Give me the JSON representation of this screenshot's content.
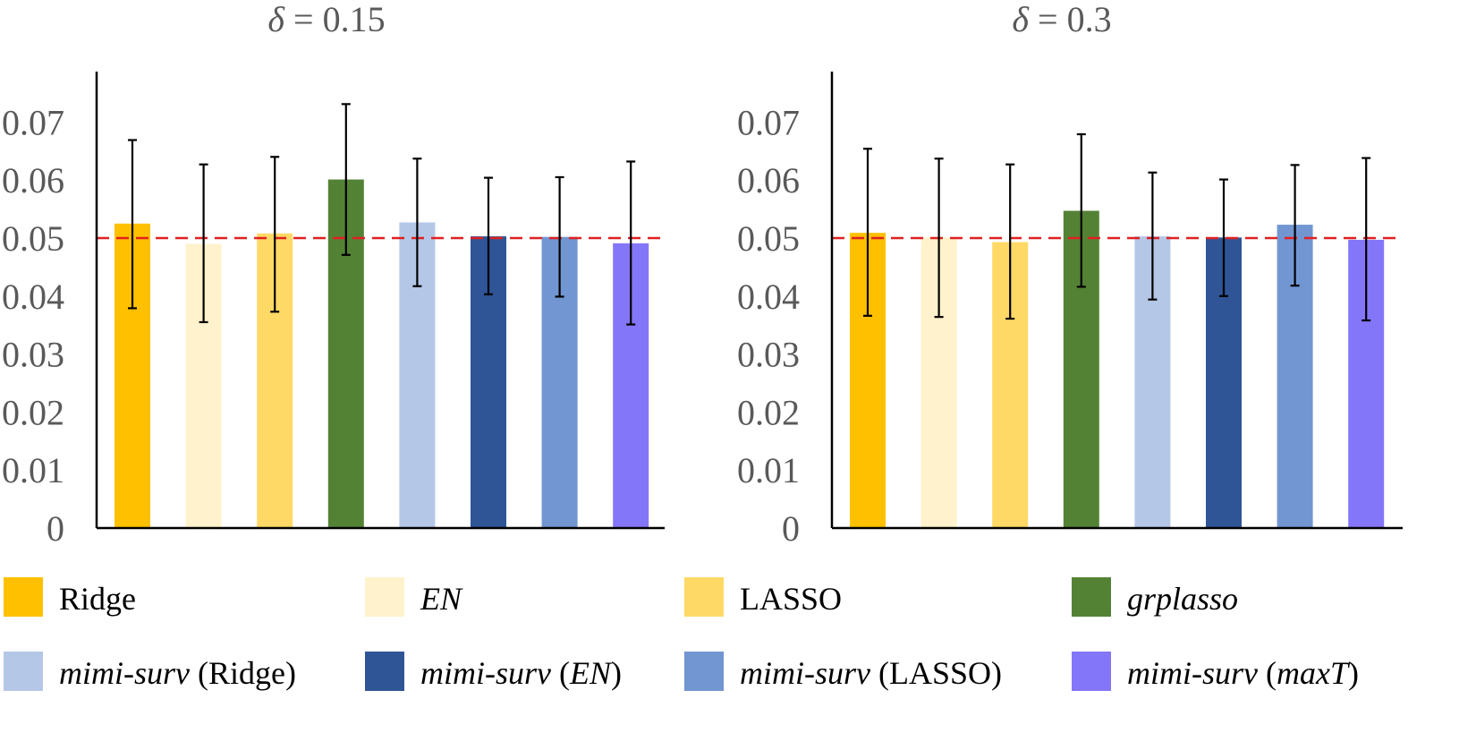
{
  "chart_data": [
    {
      "type": "bar",
      "title_symbol": "δ",
      "title_value": "= 0.15",
      "categories": [
        "Ridge",
        "EN",
        "LASSO",
        "grplasso",
        "mimi-surv (Ridge)",
        "mimi-surv (EN)",
        "mimi-surv (LASSO)",
        "mimi-surv (maxT)"
      ],
      "values": [
        0.0525,
        0.049,
        0.0508,
        0.0601,
        0.0527,
        0.0503,
        0.0502,
        0.0491
      ],
      "error_low": [
        0.0379,
        0.0355,
        0.0373,
        0.0471,
        0.0417,
        0.0403,
        0.0399,
        0.0351
      ],
      "error_high": [
        0.0669,
        0.0627,
        0.064,
        0.0731,
        0.0637,
        0.0604,
        0.0605,
        0.0632
      ],
      "reference_line": 0.05,
      "ylim": [
        0,
        0.075
      ],
      "yticks": [
        "0",
        "0.01",
        "0.02",
        "0.03",
        "0.04",
        "0.05",
        "0.06",
        "0.07"
      ],
      "xlabel": "",
      "ylabel": ""
    },
    {
      "type": "bar",
      "title_symbol": "δ",
      "title_value": "= 0.3",
      "categories": [
        "Ridge",
        "EN",
        "LASSO",
        "grplasso",
        "mimi-surv (Ridge)",
        "mimi-surv (EN)",
        "mimi-surv (LASSO)",
        "mimi-surv (maxT)"
      ],
      "values": [
        0.0509,
        0.0501,
        0.0493,
        0.0547,
        0.0503,
        0.0501,
        0.0523,
        0.0497
      ],
      "error_low": [
        0.0366,
        0.0364,
        0.0361,
        0.0416,
        0.0394,
        0.04,
        0.0418,
        0.0358
      ],
      "error_high": [
        0.0654,
        0.0637,
        0.0627,
        0.0679,
        0.0613,
        0.0601,
        0.0626,
        0.0638
      ],
      "reference_line": 0.05,
      "ylim": [
        0,
        0.075
      ],
      "yticks": [
        "0",
        "0.01",
        "0.02",
        "0.03",
        "0.04",
        "0.05",
        "0.06",
        "0.07"
      ],
      "xlabel": "",
      "ylabel": ""
    }
  ],
  "colors": {
    "bars": [
      "#FFC000",
      "#FFF2CC",
      "#FFD966",
      "#548235",
      "#B4C7E7",
      "#2F5597",
      "#7196D2",
      "#8476F8"
    ],
    "reference_line": "#E02020",
    "axis": "#000000",
    "tick_text": "#595959"
  },
  "legend": [
    {
      "parts": [
        {
          "text": "Ridge",
          "italic": false
        }
      ]
    },
    {
      "parts": [
        {
          "text": "EN",
          "italic": true
        }
      ]
    },
    {
      "parts": [
        {
          "text": "LASSO",
          "italic": false
        }
      ]
    },
    {
      "parts": [
        {
          "text": "grplasso",
          "italic": true
        }
      ]
    },
    {
      "parts": [
        {
          "text": "mimi-surv",
          "italic": true
        },
        {
          "text": " (Ridge)",
          "italic": false
        }
      ]
    },
    {
      "parts": [
        {
          "text": "mimi-surv",
          "italic": true
        },
        {
          "text": " (",
          "italic": false
        },
        {
          "text": "EN",
          "italic": true
        },
        {
          "text": ")",
          "italic": false
        }
      ]
    },
    {
      "parts": [
        {
          "text": "mimi-surv",
          "italic": true
        },
        {
          "text": " (LASSO)",
          "italic": false
        }
      ]
    },
    {
      "parts": [
        {
          "text": "mimi-surv",
          "italic": true
        },
        {
          "text": " (",
          "italic": false
        },
        {
          "text": "maxT",
          "italic": true
        },
        {
          "text": ")",
          "italic": false
        }
      ]
    }
  ]
}
